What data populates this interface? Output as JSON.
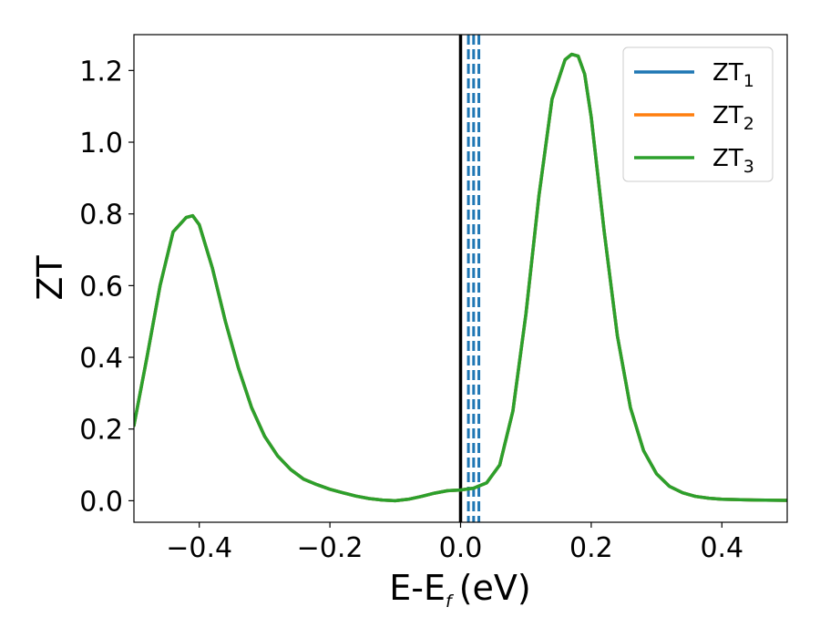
{
  "chart_data": {
    "type": "line",
    "xlabel": "E-E",
    "xlabel_sub": "f",
    "xlabel_unit": "(eV)",
    "ylabel": "ZT",
    "xlim": [
      -0.5,
      0.5
    ],
    "ylim": [
      -0.06,
      1.3
    ],
    "xticks": [
      -0.4,
      -0.2,
      0.0,
      0.2,
      0.4
    ],
    "xtick_labels": [
      "−0.4",
      "−0.2",
      "0.0",
      "0.2",
      "0.4"
    ],
    "yticks": [
      0.0,
      0.2,
      0.4,
      0.6,
      0.8,
      1.0,
      1.2
    ],
    "ytick_labels": [
      "0.0",
      "0.2",
      "0.4",
      "0.6",
      "0.8",
      "1.0",
      "1.2"
    ],
    "grid": false,
    "legend_position": "top-right",
    "x": [
      -0.5,
      -0.48,
      -0.46,
      -0.44,
      -0.42,
      -0.41,
      -0.4,
      -0.38,
      -0.36,
      -0.34,
      -0.32,
      -0.3,
      -0.28,
      -0.26,
      -0.24,
      -0.22,
      -0.2,
      -0.18,
      -0.16,
      -0.14,
      -0.12,
      -0.1,
      -0.08,
      -0.06,
      -0.04,
      -0.02,
      0.0,
      0.02,
      0.04,
      0.06,
      0.08,
      0.1,
      0.12,
      0.14,
      0.16,
      0.17,
      0.18,
      0.19,
      0.2,
      0.22,
      0.24,
      0.26,
      0.28,
      0.3,
      0.32,
      0.34,
      0.36,
      0.38,
      0.4,
      0.45,
      0.5
    ],
    "series": [
      {
        "name": "ZT",
        "name_sub": "1",
        "color": "#1f77b4",
        "values": [
          0.21,
          0.4,
          0.6,
          0.75,
          0.79,
          0.795,
          0.77,
          0.65,
          0.5,
          0.37,
          0.26,
          0.18,
          0.125,
          0.087,
          0.06,
          0.045,
          0.032,
          0.022,
          0.013,
          0.006,
          0.002,
          0.0,
          0.004,
          0.012,
          0.021,
          0.028,
          0.03,
          0.035,
          0.05,
          0.1,
          0.25,
          0.52,
          0.85,
          1.12,
          1.23,
          1.245,
          1.24,
          1.19,
          1.07,
          0.75,
          0.46,
          0.26,
          0.14,
          0.075,
          0.04,
          0.022,
          0.012,
          0.007,
          0.004,
          0.002,
          0.001
        ]
      },
      {
        "name": "ZT",
        "name_sub": "2",
        "color": "#ff7f0e",
        "values": [
          0.21,
          0.4,
          0.6,
          0.75,
          0.79,
          0.795,
          0.77,
          0.65,
          0.5,
          0.37,
          0.26,
          0.18,
          0.125,
          0.087,
          0.06,
          0.045,
          0.032,
          0.022,
          0.013,
          0.006,
          0.002,
          0.0,
          0.004,
          0.012,
          0.021,
          0.028,
          0.03,
          0.035,
          0.05,
          0.1,
          0.25,
          0.52,
          0.85,
          1.12,
          1.23,
          1.245,
          1.24,
          1.19,
          1.07,
          0.75,
          0.46,
          0.26,
          0.14,
          0.075,
          0.04,
          0.022,
          0.012,
          0.007,
          0.004,
          0.002,
          0.001
        ]
      },
      {
        "name": "ZT",
        "name_sub": "3",
        "color": "#2ca02c",
        "values": [
          0.21,
          0.4,
          0.6,
          0.75,
          0.79,
          0.795,
          0.77,
          0.65,
          0.5,
          0.37,
          0.26,
          0.18,
          0.125,
          0.087,
          0.06,
          0.045,
          0.032,
          0.022,
          0.013,
          0.006,
          0.002,
          0.0,
          0.004,
          0.012,
          0.021,
          0.028,
          0.03,
          0.035,
          0.05,
          0.1,
          0.25,
          0.52,
          0.85,
          1.12,
          1.23,
          1.245,
          1.24,
          1.19,
          1.07,
          0.75,
          0.46,
          0.26,
          0.14,
          0.075,
          0.04,
          0.022,
          0.012,
          0.007,
          0.004,
          0.002,
          0.001
        ]
      }
    ],
    "vlines": [
      {
        "x": 0.0,
        "style": "solid",
        "color": "#000000"
      },
      {
        "x": 0.012,
        "style": "dashed",
        "color": "#1f77b4"
      },
      {
        "x": 0.02,
        "style": "dashed",
        "color": "#1f77b4"
      },
      {
        "x": 0.028,
        "style": "dashed",
        "color": "#1f77b4"
      }
    ]
  }
}
